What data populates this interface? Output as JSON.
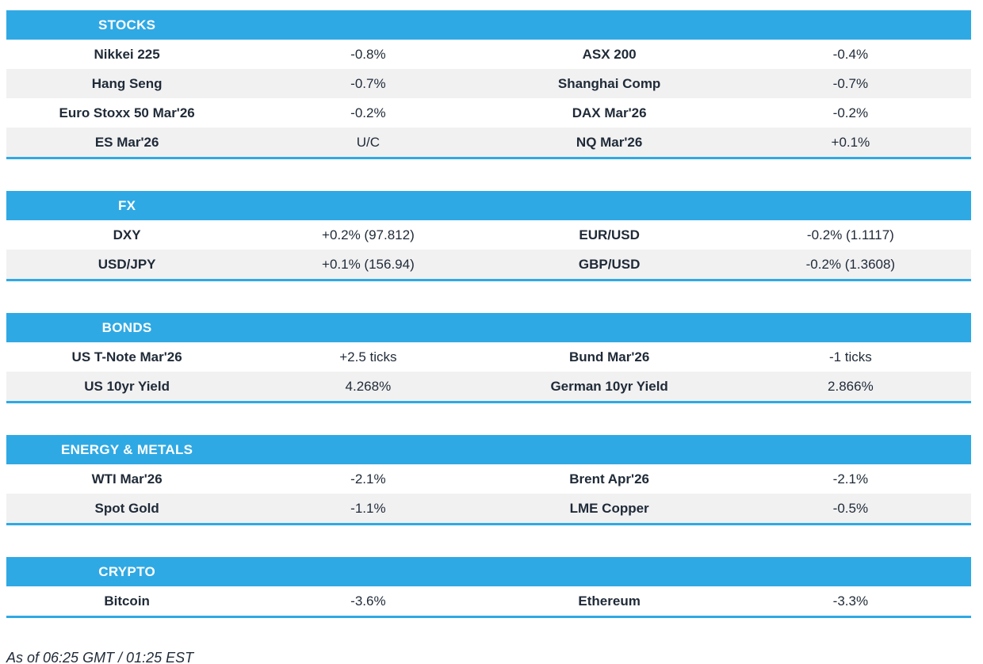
{
  "colors": {
    "accent": "#2fa9e4",
    "text": "#1f2a37",
    "row_stripe": "#f1f1f2",
    "header_text": "#ffffff"
  },
  "sections": [
    {
      "title": "STOCKS",
      "rows": [
        [
          "Nikkei 225",
          "-0.8%",
          "ASX 200",
          "-0.4%"
        ],
        [
          "Hang Seng",
          "-0.7%",
          "Shanghai Comp",
          "-0.7%"
        ],
        [
          "Euro Stoxx 50 Mar'26",
          "-0.2%",
          "DAX Mar'26",
          "-0.2%"
        ],
        [
          "ES Mar'26",
          "U/C",
          "NQ Mar'26",
          "+0.1%"
        ]
      ]
    },
    {
      "title": "FX",
      "rows": [
        [
          "DXY",
          "+0.2% (97.812)",
          "EUR/USD",
          "-0.2% (1.1117)"
        ],
        [
          "USD/JPY",
          "+0.1% (156.94)",
          "GBP/USD",
          "-0.2% (1.3608)"
        ]
      ]
    },
    {
      "title": "BONDS",
      "rows": [
        [
          "US T-Note Mar'26",
          "+2.5 ticks",
          "Bund Mar'26",
          "-1 ticks"
        ],
        [
          "US 10yr Yield",
          "4.268%",
          "German 10yr Yield",
          "2.866%"
        ]
      ]
    },
    {
      "title": "ENERGY & METALS",
      "rows": [
        [
          "WTI Mar'26",
          "-2.1%",
          "Brent Apr'26",
          "-2.1%"
        ],
        [
          "Spot Gold",
          "-1.1%",
          "LME Copper",
          "-0.5%"
        ]
      ]
    },
    {
      "title": "CRYPTO",
      "rows": [
        [
          "Bitcoin",
          "-3.6%",
          "Ethereum",
          "-3.3%"
        ]
      ]
    }
  ],
  "footer": {
    "as_of": "As of 06:25 GMT / 01:25 EST"
  }
}
